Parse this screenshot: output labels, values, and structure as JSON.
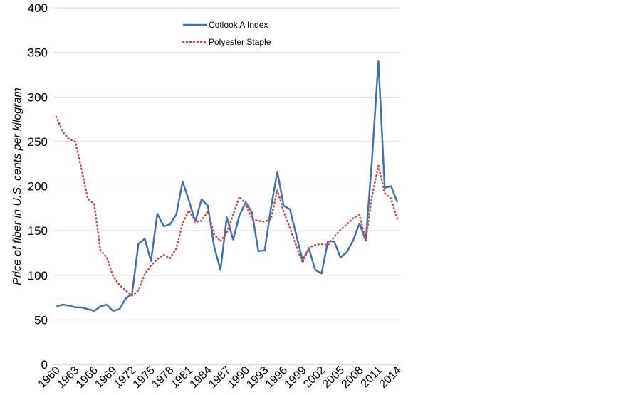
{
  "chart_data": {
    "type": "line",
    "title": "",
    "xlabel": "",
    "ylabel": "Price of fiber in U.S. cents per kilogram",
    "xlim": [
      1960,
      2014
    ],
    "ylim": [
      0,
      400
    ],
    "yticks": [
      0,
      50,
      100,
      150,
      200,
      250,
      300,
      350,
      400
    ],
    "xtick_labels": [
      "1960",
      "1963",
      "1966",
      "1969",
      "1972",
      "1975",
      "1978",
      "1981",
      "1984",
      "1987",
      "1990",
      "1993",
      "1996",
      "1999",
      "2002",
      "2005",
      "2008",
      "2011",
      "2014"
    ],
    "grid": "horizontal",
    "legend_position": "top-center",
    "x": [
      1960,
      1961,
      1962,
      1963,
      1964,
      1965,
      1966,
      1967,
      1968,
      1969,
      1970,
      1971,
      1972,
      1973,
      1974,
      1975,
      1976,
      1977,
      1978,
      1979,
      1980,
      1981,
      1982,
      1983,
      1984,
      1985,
      1986,
      1987,
      1988,
      1989,
      1990,
      1991,
      1992,
      1993,
      1994,
      1995,
      1996,
      1997,
      1998,
      1999,
      2000,
      2001,
      2002,
      2003,
      2004,
      2005,
      2006,
      2007,
      2008,
      2009,
      2010,
      2011,
      2012,
      2013,
      2014
    ],
    "series": [
      {
        "name": "Cotlook A Index",
        "color": "#4472a8",
        "style": "solid",
        "values": [
          65,
          67,
          66,
          64,
          64,
          62,
          60,
          65,
          67,
          60,
          62,
          74,
          79,
          135,
          141,
          116,
          169,
          155,
          157,
          168,
          205,
          184,
          160,
          185,
          178,
          132,
          106,
          165,
          140,
          167,
          182,
          170,
          127,
          128,
          176,
          216,
          178,
          174,
          145,
          117,
          130,
          106,
          102,
          138,
          138,
          120,
          126,
          139,
          158,
          139,
          231,
          340,
          198,
          200,
          182
        ]
      },
      {
        "name": "Polyester Staple",
        "color": "#c0504d",
        "style": "dotted",
        "values": [
          278,
          261,
          253,
          250,
          219,
          186,
          180,
          128,
          120,
          99,
          89,
          83,
          77,
          83,
          101,
          111,
          118,
          123,
          119,
          130,
          158,
          173,
          160,
          161,
          172,
          146,
          138,
          148,
          168,
          188,
          180,
          163,
          161,
          160,
          163,
          196,
          171,
          153,
          133,
          114,
          131,
          134,
          135,
          134,
          143,
          151,
          157,
          164,
          168,
          139,
          189,
          223,
          192,
          186,
          163
        ]
      }
    ]
  }
}
